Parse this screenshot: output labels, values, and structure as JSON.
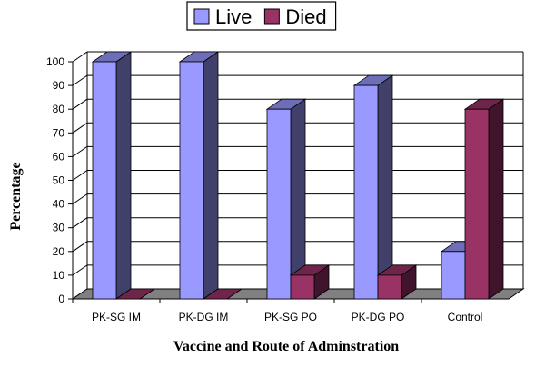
{
  "chart_data": {
    "type": "bar",
    "title": "",
    "xlabel": "Vaccine and Route of Adminstration",
    "ylabel": "Percentage",
    "ylim": [
      0,
      100
    ],
    "yticks": [
      "0",
      "10",
      "20",
      "30",
      "40",
      "50",
      "60",
      "70",
      "80",
      "90",
      "100"
    ],
    "categories": [
      "PK-SG IM",
      "PK-DG IM",
      "PK-SG PO",
      "PK-DG PO",
      "Control"
    ],
    "series": [
      {
        "name": "Live",
        "values": [
          100,
          100,
          80,
          90,
          20
        ],
        "color": "#9999ff"
      },
      {
        "name": "Died",
        "values": [
          0,
          0,
          10,
          10,
          80
        ],
        "color": "#993366"
      }
    ],
    "grid": true,
    "legend": "top"
  }
}
